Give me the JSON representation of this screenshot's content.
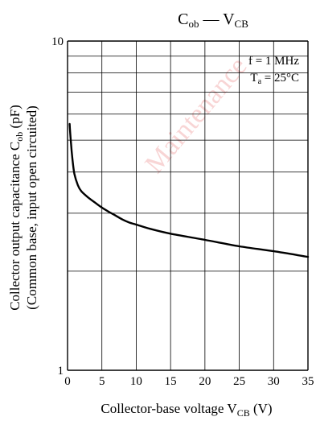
{
  "watermark": "Maintenance",
  "chart_data": {
    "type": "line",
    "title": {
      "main": "C",
      "main_sub": "ob",
      "sep": " — ",
      "tail": "V",
      "tail_sub": "CB"
    },
    "xlabel": {
      "text": "Collector-base voltage  V",
      "sub": "CB",
      "unit": "  (V)"
    },
    "ylabel": {
      "line1": {
        "text": "Collector output capacitance   C",
        "sub": "ob",
        "unit": "  (pF)"
      },
      "line2": "(Common base, input open circuited)"
    },
    "x_scale": "linear",
    "y_scale": "log",
    "xlim": [
      0,
      35
    ],
    "ylim": [
      1,
      10
    ],
    "x_ticks": [
      0,
      5,
      10,
      15,
      20,
      25,
      30,
      35
    ],
    "x_tick_labels": [
      "0",
      "5",
      "10",
      "15",
      "20",
      "25",
      "30",
      "35"
    ],
    "y_tick_labels": [
      {
        "value": 1,
        "label": "1"
      },
      {
        "value": 10,
        "label": "10"
      }
    ],
    "grid": true,
    "conditions": [
      {
        "text": "f = 1 MHz"
      },
      {
        "text": "T",
        "sub": "a",
        "tail": " = 25°C"
      }
    ],
    "series": [
      {
        "color": "#000000",
        "x": [
          0.3,
          0.5,
          0.7,
          1.0,
          1.5,
          2,
          3,
          4,
          5,
          6,
          7,
          8,
          9,
          10,
          12,
          15,
          20,
          25,
          30,
          35
        ],
        "y": [
          5.6,
          4.9,
          4.4,
          3.95,
          3.65,
          3.5,
          3.35,
          3.23,
          3.12,
          3.03,
          2.95,
          2.87,
          2.81,
          2.77,
          2.69,
          2.6,
          2.49,
          2.38,
          2.3,
          2.21
        ]
      }
    ]
  }
}
